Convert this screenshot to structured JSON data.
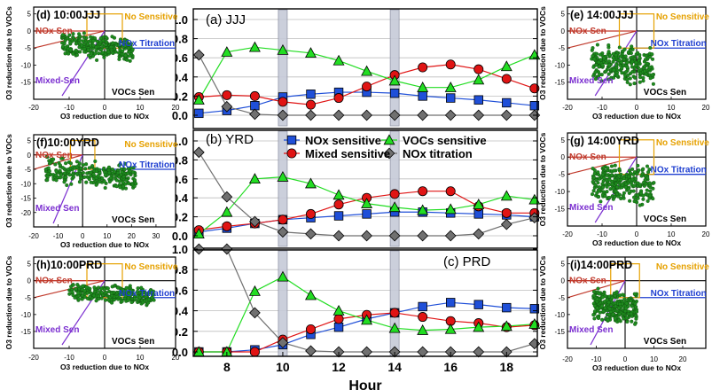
{
  "chart_data": [
    {
      "type": "line",
      "panel": "center-top",
      "title": "(a) JJJ",
      "x": [
        7,
        8,
        9,
        10,
        11,
        12,
        13,
        14,
        15,
        16,
        17,
        18,
        19
      ],
      "ylim": [
        0,
        1.0
      ],
      "yticks": [
        "0.0",
        "0.2",
        "0.4",
        "0.6",
        "0.8",
        "1.0"
      ],
      "highlight_hours": [
        10,
        14
      ],
      "series": [
        {
          "name": "NOx sensitive",
          "color": "#1f4fd8",
          "marker": "square",
          "values": [
            0.02,
            0.05,
            0.1,
            0.19,
            0.22,
            0.24,
            0.24,
            0.23,
            0.2,
            0.18,
            0.16,
            0.13,
            0.1
          ]
        },
        {
          "name": "Mixed sensitive",
          "color": "#e01414",
          "marker": "circle",
          "values": [
            0.19,
            0.21,
            0.2,
            0.14,
            0.11,
            0.18,
            0.3,
            0.42,
            0.5,
            0.53,
            0.48,
            0.38,
            0.28
          ]
        },
        {
          "name": "VOCs sensitive",
          "color": "#22dd22",
          "marker": "triangle",
          "values": [
            0.16,
            0.66,
            0.71,
            0.68,
            0.65,
            0.57,
            0.46,
            0.36,
            0.29,
            0.29,
            0.37,
            0.51,
            0.63
          ]
        },
        {
          "name": "NOx titration",
          "color": "#707070",
          "marker": "diamond",
          "values": [
            0.63,
            0.09,
            0.01,
            0.0,
            0.0,
            0.0,
            0.0,
            0.0,
            0.0,
            0.0,
            0.0,
            0.0,
            0.0
          ]
        }
      ]
    },
    {
      "type": "line",
      "panel": "center-middle",
      "title": "(b) YRD",
      "x": [
        7,
        8,
        9,
        10,
        11,
        12,
        13,
        14,
        15,
        16,
        17,
        18,
        19
      ],
      "ylim": [
        0,
        1.0
      ],
      "yticks": [
        "0.0",
        "0.2",
        "0.4",
        "0.6",
        "0.8",
        "1.0"
      ],
      "highlight_hours": [
        10,
        14
      ],
      "series": [
        {
          "name": "NOx sensitive",
          "color": "#1f4fd8",
          "marker": "square",
          "values": [
            0.04,
            0.08,
            0.13,
            0.17,
            0.19,
            0.21,
            0.23,
            0.25,
            0.25,
            0.24,
            0.23,
            0.22,
            0.2
          ]
        },
        {
          "name": "Mixed sensitive",
          "color": "#e01414",
          "marker": "circle",
          "values": [
            0.06,
            0.1,
            0.13,
            0.17,
            0.23,
            0.33,
            0.4,
            0.44,
            0.47,
            0.47,
            0.31,
            0.24,
            0.24
          ]
        },
        {
          "name": "VOCs sensitive",
          "color": "#22dd22",
          "marker": "triangle",
          "values": [
            0.02,
            0.25,
            0.6,
            0.62,
            0.55,
            0.43,
            0.34,
            0.3,
            0.27,
            0.28,
            0.33,
            0.42,
            0.38
          ]
        },
        {
          "name": "NOx titration",
          "color": "#707070",
          "marker": "diamond",
          "values": [
            0.88,
            0.41,
            0.15,
            0.04,
            0.02,
            0.0,
            0.0,
            0.0,
            0.0,
            0.0,
            0.02,
            0.12,
            0.19
          ]
        }
      ]
    },
    {
      "type": "line",
      "panel": "center-bottom",
      "title": "(c) PRD",
      "x": [
        7,
        8,
        9,
        10,
        11,
        12,
        13,
        14,
        15,
        16,
        17,
        18,
        19
      ],
      "xticks": [
        "8",
        "10",
        "12",
        "14",
        "16",
        "18"
      ],
      "xlabel": "Hour",
      "ylim": [
        0,
        1.0
      ],
      "yticks": [
        "0.0",
        "0.2",
        "0.4",
        "0.6",
        "0.8",
        "1.0"
      ],
      "highlight_hours": [
        10,
        14
      ],
      "series": [
        {
          "name": "NOx sensitive",
          "color": "#1f4fd8",
          "marker": "square",
          "values": [
            0.0,
            0.0,
            0.02,
            0.07,
            0.17,
            0.24,
            0.32,
            0.38,
            0.44,
            0.48,
            0.46,
            0.43,
            0.42
          ]
        },
        {
          "name": "Mixed sensitive",
          "color": "#e01414",
          "marker": "circle",
          "values": [
            0.0,
            0.0,
            0.0,
            0.12,
            0.22,
            0.32,
            0.36,
            0.38,
            0.34,
            0.3,
            0.28,
            0.24,
            0.26
          ]
        },
        {
          "name": "VOCs sensitive",
          "color": "#22dd22",
          "marker": "triangle",
          "values": [
            0.0,
            0.0,
            0.59,
            0.73,
            0.55,
            0.4,
            0.31,
            0.23,
            0.21,
            0.22,
            0.24,
            0.25,
            0.27
          ]
        },
        {
          "name": "NOx titration",
          "color": "#707070",
          "marker": "diamond",
          "values": [
            1.0,
            1.0,
            0.38,
            0.09,
            0.01,
            0.0,
            0.0,
            0.0,
            0.0,
            0.0,
            0.0,
            0.0,
            0.08
          ]
        }
      ]
    },
    {
      "type": "scatter",
      "panel": "left-top",
      "title": "(d) 10:00JJJ",
      "xlabel": "O3 reduction due to NOx",
      "ylabel": "O3 reduction due to VOCs",
      "xlim": [
        -20,
        20
      ],
      "ylim": [
        -20,
        7
      ],
      "xticks": [
        "-20",
        "-10",
        "0",
        "10",
        "20"
      ],
      "yticks": [
        "-15",
        "-10",
        "-5",
        "0",
        "5"
      ],
      "cluster": {
        "x_range": [
          -12,
          8
        ],
        "y_center": -4,
        "spread": 4
      },
      "labels": {
        "no_sensitive": "No Sensitive",
        "nox_sen": "NOx Sen",
        "nox_titration": "NOx Titration",
        "mixed_sen": "Mixed-Sen",
        "vocs_sen": "VOCs Sen"
      }
    },
    {
      "type": "scatter",
      "panel": "left-middle",
      "title": "(f)10:00YRD",
      "xlabel": "O3 reduction due to NOx",
      "ylabel": "O3 reduction due to VOCs",
      "xlim": [
        -20,
        38
      ],
      "ylim": [
        -25,
        7
      ],
      "xticks": [
        "-20",
        "-10",
        "0",
        "10",
        "20",
        "30"
      ],
      "yticks": [
        "-20",
        "-15",
        "-10",
        "-5",
        "0",
        "5"
      ],
      "cluster": {
        "x_range": [
          -15,
          22
        ],
        "y_center": -5,
        "spread": 5
      },
      "labels": {
        "no_sensitive": "No Sensitive",
        "nox_sen": "NOx Sen",
        "nox_titration": "NOx Titration",
        "mixed_sen": "Mixed Sen",
        "vocs_sen": "VOCs Sen"
      }
    },
    {
      "type": "scatter",
      "panel": "left-bottom",
      "title": "(h)10:00PRD",
      "xlabel": "O3 reduction due to NOx",
      "ylabel": "O3 reduction due to VOCs",
      "xlim": [
        -20,
        20
      ],
      "ylim": [
        -20,
        7
      ],
      "xticks": [
        "-20",
        "-10",
        "0",
        "10",
        "20"
      ],
      "yticks": [
        "-15",
        "-10",
        "-5",
        "0",
        "5"
      ],
      "cluster": {
        "x_range": [
          -10,
          14
        ],
        "y_center": -3,
        "spread": 3
      },
      "labels": {
        "no_sensitive": "No Sensitive",
        "nox_sen": "NOx Sen",
        "nox_titration": "NOx Titration",
        "mixed_sen": "Mixed Sen",
        "vocs_sen": "VOCs Sen"
      }
    },
    {
      "type": "scatter",
      "panel": "right-top",
      "title": "(e) 14:00JJJ",
      "xlabel": "O3 reduction due to NOx",
      "ylabel": "O3 reduction due to VOCs",
      "xlim": [
        -20,
        20
      ],
      "ylim": [
        -20,
        7
      ],
      "xticks": [
        "-20",
        "-10",
        "0",
        "10",
        "20"
      ],
      "yticks": [
        "-15",
        "-10",
        "-5",
        "0",
        "5"
      ],
      "cluster": {
        "x_range": [
          -13,
          5
        ],
        "y_center": -9,
        "spread": 6
      },
      "labels": {
        "no_sensitive": "No Sensitive",
        "nox_sen": "NOx Sen",
        "nox_titration": "NOx Titration",
        "mixed_sen": "Mixed Sen",
        "vocs_sen": "VOCs Sen"
      }
    },
    {
      "type": "scatter",
      "panel": "right-middle",
      "title": "(g) 14:00YRD",
      "xlabel": "O3 reduction due to NOx",
      "ylabel": "O3 reduction due to VOCs",
      "xlim": [
        -20,
        20
      ],
      "ylim": [
        -20,
        7
      ],
      "xticks": [
        "-20",
        "-10",
        "0",
        "10",
        "20"
      ],
      "yticks": [
        "-15",
        "-10",
        "-5",
        "0",
        "5"
      ],
      "cluster": {
        "x_range": [
          -13,
          5
        ],
        "y_center": -7,
        "spread": 6
      },
      "labels": {
        "no_sensitive": "No Sensitive",
        "nox_sen": "NOx Sen",
        "nox_titration": "NOx Titration",
        "mixed_sen": "Mixed Sen",
        "vocs_sen": "VOCs Sen"
      }
    },
    {
      "type": "scatter",
      "panel": "right-bottom",
      "title": "(i)14:00PRD",
      "xlabel": "O3 reduction due to NOx",
      "ylabel": "O3 reduction due to VOCs",
      "xlim": [
        -20,
        28
      ],
      "ylim": [
        -20,
        7
      ],
      "xticks": [
        "-20",
        "-10",
        "0",
        "10",
        "20"
      ],
      "yticks": [
        "-15",
        "-10",
        "-5",
        "0",
        "5"
      ],
      "cluster": {
        "x_range": [
          -11,
          4
        ],
        "y_center": -7,
        "spread": 5
      },
      "labels": {
        "no_sensitive": "No Sensitive",
        "nox_sen": "NOx Sen",
        "nox_titration": "NOx Titration",
        "mixed_sen": "Mixed Sen",
        "vocs_sen": "VOCs Sen"
      }
    }
  ]
}
